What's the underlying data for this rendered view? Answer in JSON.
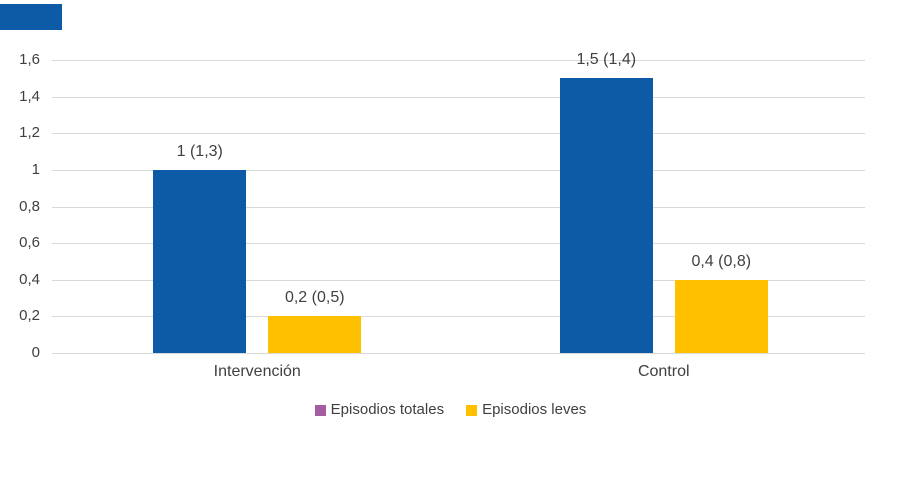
{
  "chart_data": {
    "type": "bar",
    "categories": [
      "Intervención",
      "Control"
    ],
    "series": [
      {
        "name": "Episodios totales",
        "values": [
          1,
          1.5
        ],
        "labels": [
          "1 (1,3)",
          "1,5 (1,4)"
        ],
        "bar_color": "#0D5AA6",
        "legend_color": "#A65CA0"
      },
      {
        "name": "Episodios leves",
        "values": [
          0.2,
          0.4
        ],
        "labels": [
          "0,2 (0,5)",
          "0,4 (0,8)"
        ],
        "bar_color": "#FFC000",
        "legend_color": "#FFC000"
      }
    ],
    "title": "",
    "xlabel": "",
    "ylabel": "",
    "ylim": [
      0,
      1.6
    ],
    "ytick_step": 0.2,
    "ytick_labels": [
      "0",
      "0,2",
      "0,4",
      "0,6",
      "0,8",
      "1",
      "1,2",
      "1,4",
      "1,6"
    ],
    "grid": true,
    "legend_position": "bottom",
    "decimal_separator": ","
  },
  "colors": {
    "gridline": "#D9D9D9",
    "axis_text": "#404040",
    "stray_rectangle": "#0D5AA6",
    "background": "#FFFFFF"
  }
}
